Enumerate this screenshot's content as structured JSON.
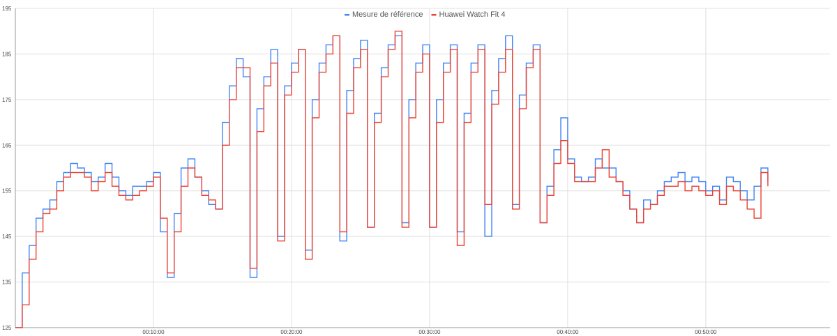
{
  "chart_data": {
    "type": "line",
    "title": "",
    "xlabel": "",
    "ylabel": "",
    "legend_position": "top-center",
    "grid": true,
    "ylim": [
      125,
      195
    ],
    "y_ticks": [
      "125",
      "135",
      "145",
      "155",
      "165",
      "175",
      "185",
      "195"
    ],
    "x_range": [
      "00:00:00",
      "00:59:00"
    ],
    "x_ticks": [
      "00:10:00",
      "00:20:00",
      "00:30:00",
      "00:40:00",
      "00:50:00"
    ],
    "series": [
      {
        "name": "Mesure de référence",
        "color": "#4285f4",
        "points": [
          [
            "00:00:00",
            125
          ],
          [
            "00:00:30",
            137
          ],
          [
            "00:01:00",
            143
          ],
          [
            "00:01:30",
            149
          ],
          [
            "00:02:00",
            151
          ],
          [
            "00:02:30",
            153
          ],
          [
            "00:03:00",
            157
          ],
          [
            "00:03:30",
            159
          ],
          [
            "00:04:00",
            161
          ],
          [
            "00:04:30",
            160
          ],
          [
            "00:05:00",
            159
          ],
          [
            "00:05:30",
            157
          ],
          [
            "00:06:00",
            158
          ],
          [
            "00:06:30",
            161
          ],
          [
            "00:07:00",
            158
          ],
          [
            "00:07:30",
            155
          ],
          [
            "00:08:00",
            154
          ],
          [
            "00:08:30",
            156
          ],
          [
            "00:09:00",
            156
          ],
          [
            "00:09:30",
            157
          ],
          [
            "00:10:00",
            159
          ],
          [
            "00:10:30",
            146
          ],
          [
            "00:11:00",
            136
          ],
          [
            "00:11:30",
            150
          ],
          [
            "00:12:00",
            160
          ],
          [
            "00:12:30",
            162
          ],
          [
            "00:13:00",
            158
          ],
          [
            "00:13:30",
            155
          ],
          [
            "00:14:00",
            152
          ],
          [
            "00:14:30",
            151
          ],
          [
            "00:15:00",
            170
          ],
          [
            "00:15:30",
            178
          ],
          [
            "00:16:00",
            184
          ],
          [
            "00:16:30",
            180
          ],
          [
            "00:17:00",
            136
          ],
          [
            "00:17:30",
            173
          ],
          [
            "00:18:00",
            180
          ],
          [
            "00:18:30",
            186
          ],
          [
            "00:19:00",
            145
          ],
          [
            "00:19:30",
            178
          ],
          [
            "00:20:00",
            183
          ],
          [
            "00:20:30",
            186
          ],
          [
            "00:21:00",
            142
          ],
          [
            "00:21:30",
            175
          ],
          [
            "00:22:00",
            183
          ],
          [
            "00:22:30",
            187
          ],
          [
            "00:23:00",
            189
          ],
          [
            "00:23:30",
            144
          ],
          [
            "00:24:00",
            177
          ],
          [
            "00:24:30",
            184
          ],
          [
            "00:25:00",
            188
          ],
          [
            "00:25:30",
            147
          ],
          [
            "00:26:00",
            172
          ],
          [
            "00:26:30",
            182
          ],
          [
            "00:27:00",
            187
          ],
          [
            "00:27:30",
            189
          ],
          [
            "00:28:00",
            148
          ],
          [
            "00:28:30",
            175
          ],
          [
            "00:29:00",
            183
          ],
          [
            "00:29:30",
            187
          ],
          [
            "00:30:00",
            147
          ],
          [
            "00:30:30",
            175
          ],
          [
            "00:31:00",
            183
          ],
          [
            "00:31:30",
            187
          ],
          [
            "00:32:00",
            146
          ],
          [
            "00:32:30",
            172
          ],
          [
            "00:33:00",
            183
          ],
          [
            "00:33:30",
            187
          ],
          [
            "00:34:00",
            145
          ],
          [
            "00:34:30",
            177
          ],
          [
            "00:35:00",
            184
          ],
          [
            "00:35:30",
            189
          ],
          [
            "00:36:00",
            152
          ],
          [
            "00:36:30",
            176
          ],
          [
            "00:37:00",
            183
          ],
          [
            "00:37:30",
            187
          ],
          [
            "00:38:00",
            148
          ],
          [
            "00:38:30",
            156
          ],
          [
            "00:39:00",
            164
          ],
          [
            "00:39:30",
            171
          ],
          [
            "00:40:00",
            162
          ],
          [
            "00:40:30",
            158
          ],
          [
            "00:41:00",
            157
          ],
          [
            "00:41:30",
            158
          ],
          [
            "00:42:00",
            162
          ],
          [
            "00:42:30",
            160
          ],
          [
            "00:43:00",
            160
          ],
          [
            "00:43:30",
            157
          ],
          [
            "00:44:00",
            155
          ],
          [
            "00:44:30",
            151
          ],
          [
            "00:45:00",
            148
          ],
          [
            "00:45:30",
            153
          ],
          [
            "00:46:00",
            152
          ],
          [
            "00:46:30",
            155
          ],
          [
            "00:47:00",
            157
          ],
          [
            "00:47:30",
            158
          ],
          [
            "00:48:00",
            159
          ],
          [
            "00:48:30",
            157
          ],
          [
            "00:49:00",
            158
          ],
          [
            "00:49:30",
            157
          ],
          [
            "00:50:00",
            155
          ],
          [
            "00:50:30",
            156
          ],
          [
            "00:51:00",
            153
          ],
          [
            "00:51:30",
            158
          ],
          [
            "00:52:00",
            157
          ],
          [
            "00:52:30",
            155
          ],
          [
            "00:53:00",
            153
          ],
          [
            "00:53:30",
            156
          ],
          [
            "00:54:00",
            160
          ],
          [
            "00:54:30",
            157
          ]
        ]
      },
      {
        "name": "Huawei Watch Fit 4",
        "color": "#ea4335",
        "points": [
          [
            "00:00:00",
            125
          ],
          [
            "00:00:30",
            130
          ],
          [
            "00:01:00",
            140
          ],
          [
            "00:01:30",
            146
          ],
          [
            "00:02:00",
            150
          ],
          [
            "00:02:30",
            151
          ],
          [
            "00:03:00",
            155
          ],
          [
            "00:03:30",
            158
          ],
          [
            "00:04:00",
            159
          ],
          [
            "00:04:30",
            159
          ],
          [
            "00:05:00",
            158
          ],
          [
            "00:05:30",
            155
          ],
          [
            "00:06:00",
            157
          ],
          [
            "00:06:30",
            159
          ],
          [
            "00:07:00",
            156
          ],
          [
            "00:07:30",
            154
          ],
          [
            "00:08:00",
            153
          ],
          [
            "00:08:30",
            154
          ],
          [
            "00:09:00",
            155
          ],
          [
            "00:09:30",
            156
          ],
          [
            "00:10:00",
            158
          ],
          [
            "00:10:30",
            149
          ],
          [
            "00:11:00",
            137
          ],
          [
            "00:11:30",
            146
          ],
          [
            "00:12:00",
            156
          ],
          [
            "00:12:30",
            160
          ],
          [
            "00:13:00",
            158
          ],
          [
            "00:13:30",
            154
          ],
          [
            "00:14:00",
            153
          ],
          [
            "00:14:30",
            151
          ],
          [
            "00:15:00",
            165
          ],
          [
            "00:15:30",
            175
          ],
          [
            "00:16:00",
            182
          ],
          [
            "00:16:30",
            182
          ],
          [
            "00:17:00",
            138
          ],
          [
            "00:17:30",
            168
          ],
          [
            "00:18:00",
            178
          ],
          [
            "00:18:30",
            183
          ],
          [
            "00:19:00",
            144
          ],
          [
            "00:19:30",
            176
          ],
          [
            "00:20:00",
            181
          ],
          [
            "00:20:30",
            186
          ],
          [
            "00:21:00",
            140
          ],
          [
            "00:21:30",
            171
          ],
          [
            "00:22:00",
            181
          ],
          [
            "00:22:30",
            185
          ],
          [
            "00:23:00",
            189
          ],
          [
            "00:23:30",
            146
          ],
          [
            "00:24:00",
            172
          ],
          [
            "00:24:30",
            182
          ],
          [
            "00:25:00",
            186
          ],
          [
            "00:25:30",
            147
          ],
          [
            "00:26:00",
            170
          ],
          [
            "00:26:30",
            180
          ],
          [
            "00:27:00",
            186
          ],
          [
            "00:27:30",
            190
          ],
          [
            "00:28:00",
            147
          ],
          [
            "00:28:30",
            171
          ],
          [
            "00:29:00",
            181
          ],
          [
            "00:29:30",
            185
          ],
          [
            "00:30:00",
            147
          ],
          [
            "00:30:30",
            170
          ],
          [
            "00:31:00",
            181
          ],
          [
            "00:31:30",
            186
          ],
          [
            "00:32:00",
            143
          ],
          [
            "00:32:30",
            170
          ],
          [
            "00:33:00",
            181
          ],
          [
            "00:33:30",
            186
          ],
          [
            "00:34:00",
            152
          ],
          [
            "00:34:30",
            174
          ],
          [
            "00:35:00",
            181
          ],
          [
            "00:35:30",
            186
          ],
          [
            "00:36:00",
            151
          ],
          [
            "00:36:30",
            173
          ],
          [
            "00:37:00",
            182
          ],
          [
            "00:37:30",
            186
          ],
          [
            "00:38:00",
            148
          ],
          [
            "00:38:30",
            154
          ],
          [
            "00:39:00",
            161
          ],
          [
            "00:39:30",
            166
          ],
          [
            "00:40:00",
            161
          ],
          [
            "00:40:30",
            157
          ],
          [
            "00:41:00",
            157
          ],
          [
            "00:41:30",
            157
          ],
          [
            "00:42:00",
            160
          ],
          [
            "00:42:30",
            164
          ],
          [
            "00:43:00",
            158
          ],
          [
            "00:43:30",
            157
          ],
          [
            "00:44:00",
            154
          ],
          [
            "00:44:30",
            151
          ],
          [
            "00:45:00",
            148
          ],
          [
            "00:45:30",
            151
          ],
          [
            "00:46:00",
            152
          ],
          [
            "00:46:30",
            154
          ],
          [
            "00:47:00",
            156
          ],
          [
            "00:47:30",
            156
          ],
          [
            "00:48:00",
            157
          ],
          [
            "00:48:30",
            155
          ],
          [
            "00:49:00",
            156
          ],
          [
            "00:49:30",
            155
          ],
          [
            "00:50:00",
            154
          ],
          [
            "00:50:30",
            155
          ],
          [
            "00:51:00",
            152
          ],
          [
            "00:51:30",
            156
          ],
          [
            "00:52:00",
            155
          ],
          [
            "00:52:30",
            153
          ],
          [
            "00:53:00",
            151
          ],
          [
            "00:53:30",
            149
          ],
          [
            "00:54:00",
            159
          ],
          [
            "00:54:30",
            156
          ]
        ]
      }
    ]
  }
}
